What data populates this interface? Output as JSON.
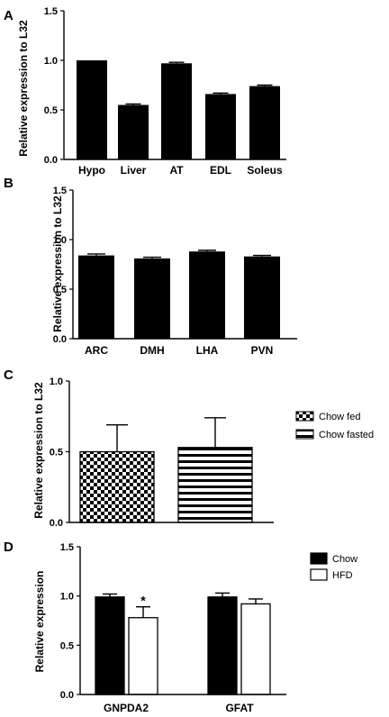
{
  "chart_data": [
    {
      "panel": "A",
      "type": "bar",
      "ylabel": "Relative expression to L32",
      "ylim": [
        0,
        1.5
      ],
      "yticks": [
        "0.0",
        "0.5",
        "1.0",
        "1.5"
      ],
      "categories": [
        "Hypo",
        "Liver",
        "AT",
        "EDL",
        "Soleus"
      ],
      "values": [
        1.0,
        0.55,
        0.97,
        0.66,
        0.74
      ],
      "errors": [
        0.0,
        0.01,
        0.01,
        0.01,
        0.01
      ],
      "colors": {
        "bar": "#000000"
      }
    },
    {
      "panel": "B",
      "type": "bar",
      "ylabel": "Relative expression to L32",
      "ylim": [
        0,
        1.5
      ],
      "yticks": [
        "0.0",
        "0.5",
        "1.0",
        "1.5"
      ],
      "categories": [
        "ARC",
        "DMH",
        "LHA",
        "PVN"
      ],
      "values": [
        0.84,
        0.81,
        0.88,
        0.83
      ],
      "errors": [
        0.015,
        0.012,
        0.012,
        0.01
      ],
      "colors": {
        "bar": "#000000"
      }
    },
    {
      "panel": "C",
      "type": "bar",
      "ylabel": "Relative expression to L32",
      "ylim": [
        0,
        1.0
      ],
      "yticks": [
        "0.0",
        "0.5",
        "1.0"
      ],
      "series": [
        {
          "name": "Chow fed",
          "values": [
            0.5
          ],
          "errors": [
            0.19
          ],
          "pattern": "checker"
        },
        {
          "name": "Chow fasted",
          "values": [
            0.53
          ],
          "errors": [
            0.21
          ],
          "pattern": "stripes"
        }
      ],
      "legend_position": "top-right"
    },
    {
      "panel": "D",
      "type": "bar",
      "ylabel": "Relative expression",
      "ylim": [
        0,
        1.5
      ],
      "yticks": [
        "0.0",
        "0.5",
        "1.0",
        "1.5"
      ],
      "categories": [
        "GNPDA2",
        "GFAT"
      ],
      "series": [
        {
          "name": "Chow",
          "values": [
            0.99,
            0.99
          ],
          "errors": [
            0.03,
            0.04
          ],
          "fill": "#000000"
        },
        {
          "name": "HFD",
          "values": [
            0.78,
            0.92
          ],
          "errors": [
            0.11,
            0.05
          ],
          "fill": "#ffffff"
        }
      ],
      "annotations": [
        {
          "text": "*",
          "category": "GNPDA2",
          "series": "HFD"
        }
      ],
      "legend_position": "top-right"
    }
  ]
}
